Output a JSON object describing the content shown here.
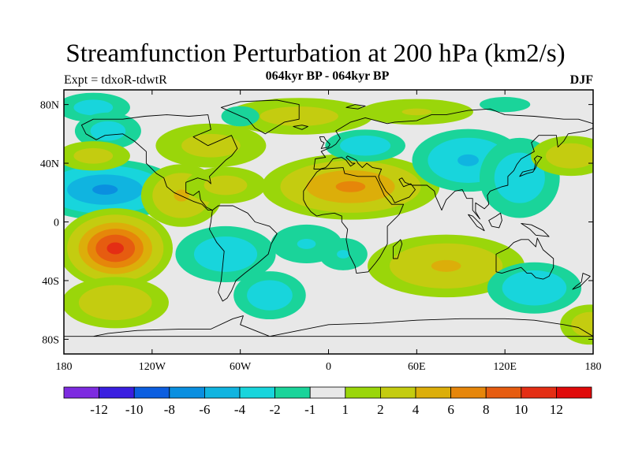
{
  "title": "Streamfunction Perturbation at 200 hPa (km2/s)",
  "left_label": "Expt = tdxoR-tdwtR",
  "center_label": "064kyr BP - 064kyr BP",
  "right_label": "DJF",
  "lat_ticks": [
    {
      "value": 80,
      "label": "80N"
    },
    {
      "value": 40,
      "label": "40N"
    },
    {
      "value": 0,
      "label": "0"
    },
    {
      "value": -40,
      "label": "40S"
    },
    {
      "value": -80,
      "label": "80S"
    }
  ],
  "lon_ticks": [
    {
      "value": -180,
      "label": "180"
    },
    {
      "value": -120,
      "label": "120W"
    },
    {
      "value": -60,
      "label": "60W"
    },
    {
      "value": 0,
      "label": "0"
    },
    {
      "value": 60,
      "label": "60E"
    },
    {
      "value": 120,
      "label": "120E"
    },
    {
      "value": 180,
      "label": "180"
    }
  ],
  "colorbar": {
    "colors": [
      "#7d2be0",
      "#3a1ee0",
      "#0c5ee0",
      "#0a8fe0",
      "#10b4e0",
      "#18d5dc",
      "#1ad49a",
      "#e8e8e8",
      "#9ad60a",
      "#c4cc10",
      "#dcae0a",
      "#e6860a",
      "#e65c10",
      "#e42e14",
      "#e00a0a"
    ],
    "labels": [
      "-12",
      "-10",
      "-8",
      "-6",
      "-4",
      "-2",
      "-1",
      "1",
      "2",
      "4",
      "6",
      "8",
      "10",
      "12"
    ]
  },
  "map": {
    "lon_range": [
      -180,
      180
    ],
    "lat_range": [
      -90,
      90
    ],
    "background_color": "#e8e8e8",
    "anomalies": [
      {
        "name": "n-pacific-arctic-negative",
        "lon": -160,
        "lat": 78,
        "rx": 20,
        "ry": 8,
        "amp": -2.5
      },
      {
        "name": "ne-pacific-negative",
        "lon": -150,
        "lat": 62,
        "rx": 18,
        "ry": 10,
        "amp": -2.5
      },
      {
        "name": "hawaii-negative",
        "lon": -152,
        "lat": 22,
        "rx": 30,
        "ry": 12,
        "amp": -6
      },
      {
        "name": "central-america-positive",
        "lon": -100,
        "lat": 18,
        "rx": 18,
        "ry": 14,
        "amp": 4
      },
      {
        "name": "caribbean-positive",
        "lon": -70,
        "lat": 25,
        "rx": 22,
        "ry": 10,
        "amp": 2.5
      },
      {
        "name": "n-america-positive",
        "lon": -80,
        "lat": 52,
        "rx": 30,
        "ry": 12,
        "amp": 2.5
      },
      {
        "name": "n-pacific-positive",
        "lon": -160,
        "lat": 45,
        "rx": 20,
        "ry": 8,
        "amp": 2.5
      },
      {
        "name": "s-pacific-positive",
        "lon": -145,
        "lat": -18,
        "rx": 20,
        "ry": 14,
        "amp": 10
      },
      {
        "name": "s-pacific-high-lat-positive",
        "lon": -145,
        "lat": -55,
        "rx": 25,
        "ry": 12,
        "amp": 3.5
      },
      {
        "name": "s-america-negative",
        "lon": -70,
        "lat": -22,
        "rx": 25,
        "ry": 14,
        "amp": -3
      },
      {
        "name": "s-atlantic-negative",
        "lon": -40,
        "lat": -50,
        "rx": 18,
        "ry": 12,
        "amp": -3
      },
      {
        "name": "equatorial-atlantic-negative",
        "lon": -15,
        "lat": -15,
        "rx": 22,
        "ry": 12,
        "amp": -2
      },
      {
        "name": "n-atlantic-positive",
        "lon": -20,
        "lat": 72,
        "rx": 40,
        "ry": 10,
        "amp": 2.5
      },
      {
        "name": "greenland-negative",
        "lon": -60,
        "lat": 72,
        "rx": 15,
        "ry": 8,
        "amp": -1.5
      },
      {
        "name": "north-africa-positive",
        "lon": 15,
        "lat": 24,
        "rx": 35,
        "ry": 13,
        "amp": 6
      },
      {
        "name": "europe-negative",
        "lon": 25,
        "lat": 52,
        "rx": 20,
        "ry": 8,
        "amp": -3
      },
      {
        "name": "arctic-siberia-positive",
        "lon": 60,
        "lat": 75,
        "rx": 35,
        "ry": 8,
        "amp": 2
      },
      {
        "name": "central-asia-negative",
        "lon": 95,
        "lat": 42,
        "rx": 25,
        "ry": 14,
        "amp": -4
      },
      {
        "name": "east-asia-negative",
        "lon": 130,
        "lat": 30,
        "rx": 20,
        "ry": 20,
        "amp": -3
      },
      {
        "name": "nw-pacific-positive",
        "lon": 165,
        "lat": 45,
        "rx": 20,
        "ry": 10,
        "amp": 3
      },
      {
        "name": "s-africa-positive",
        "lon": 80,
        "lat": -30,
        "rx": 35,
        "ry": 14,
        "amp": 4
      },
      {
        "name": "australia-negative",
        "lon": 140,
        "lat": -45,
        "rx": 22,
        "ry": 12,
        "amp": -3.5
      },
      {
        "name": "w-indian-negative",
        "lon": 10,
        "lat": -22,
        "rx": 15,
        "ry": 10,
        "amp": -2
      },
      {
        "name": "sw-pacific-positive",
        "lon": 178,
        "lat": -70,
        "rx": 15,
        "ry": 10,
        "amp": 3
      },
      {
        "name": "asia-arctic-negative",
        "lon": 120,
        "lat": 80,
        "rx": 20,
        "ry": 6,
        "amp": -1.5
      }
    ]
  }
}
